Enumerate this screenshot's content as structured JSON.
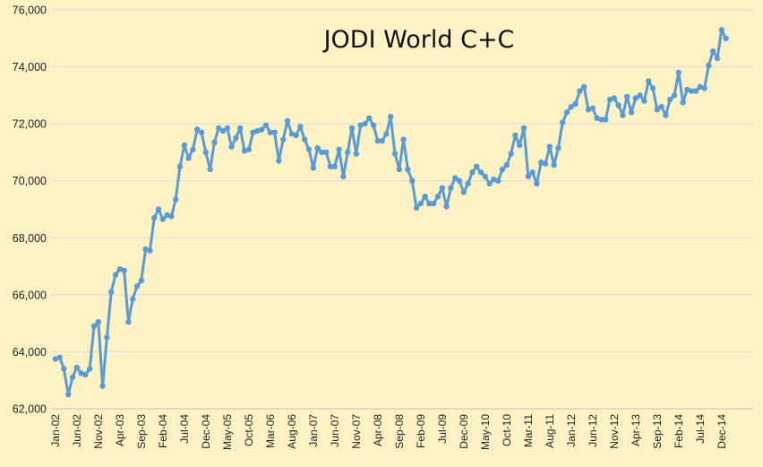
{
  "chart_data": {
    "type": "line",
    "title": "JODI World C+C",
    "xlabel": "",
    "ylabel": "",
    "ylim": [
      62000,
      76000
    ],
    "yticks": [
      62000,
      64000,
      66000,
      68000,
      70000,
      72000,
      74000,
      76000
    ],
    "ytick_labels": [
      "62,000",
      "64,000",
      "66,000",
      "68,000",
      "70,000",
      "72,000",
      "74,000",
      "76,000"
    ],
    "xtick_labels": [
      "Jan-02",
      "Jun-02",
      "Nov-02",
      "Apr-03",
      "Sep-03",
      "Feb-04",
      "Jul-04",
      "Dec-04",
      "May-05",
      "Oct-05",
      "Mar-06",
      "Aug-06",
      "Jan-07",
      "Jun-07",
      "Nov-07",
      "Apr-08",
      "Sep-08",
      "Feb-09",
      "Jul-09",
      "Dec-09",
      "May-10",
      "Oct-10",
      "Mar-11",
      "Aug-11",
      "Jan-12",
      "Jun-12",
      "Nov-12",
      "Apr-13",
      "Sep-13",
      "Feb-14",
      "Jul-14",
      "Dec-14"
    ],
    "grid": "horizontal",
    "legend": "none",
    "line_color": "#5B9BD5",
    "start": "Jan-02",
    "x_step": "1 month",
    "series": [
      {
        "values": [
          63750,
          63800,
          63400,
          62500,
          63100,
          63450,
          63250,
          63200,
          63400,
          64900,
          65050,
          62800,
          64500,
          66100,
          66700,
          66900,
          66850,
          65050,
          65850,
          66300,
          66500,
          67600,
          67550,
          68700,
          69000,
          68650,
          68800,
          68750,
          69350,
          70500,
          71250,
          70800,
          71100,
          71800,
          71700,
          71000,
          70400,
          71350,
          71850,
          71750,
          71850,
          71200,
          71500,
          71850,
          71050,
          71100,
          71700,
          71750,
          71800,
          71950,
          71700,
          71700,
          70700,
          71450,
          72100,
          71650,
          71600,
          71900,
          71450,
          71100,
          70450,
          71150,
          71000,
          71000,
          70500,
          70500,
          71100,
          70150,
          71000,
          71850,
          70950,
          71950,
          72000,
          72200,
          71950,
          71400,
          71400,
          71650,
          72250,
          70950,
          70400,
          71450,
          70400,
          70000,
          69050,
          69200,
          69450,
          69200,
          69200,
          69450,
          69750,
          69100,
          69750,
          70100,
          70000,
          69600,
          69900,
          70300,
          70500,
          70300,
          70150,
          69900,
          70050,
          70000,
          70400,
          70550,
          70950,
          71600,
          71250,
          71850,
          70150,
          70300,
          69900,
          70650,
          70600,
          71200,
          70550,
          71150,
          72050,
          72400,
          72600,
          72700,
          73150,
          73300,
          72500,
          72550,
          72200,
          72150,
          72150,
          72850,
          72900,
          72650,
          72300,
          72950,
          72400,
          72900,
          73000,
          72800,
          73500,
          73250,
          72500,
          72600,
          72300,
          72850,
          73000,
          73800,
          72750,
          73200,
          73150,
          73150,
          73300,
          73250,
          74050,
          74550,
          74300,
          75300,
          75000
        ]
      }
    ]
  }
}
